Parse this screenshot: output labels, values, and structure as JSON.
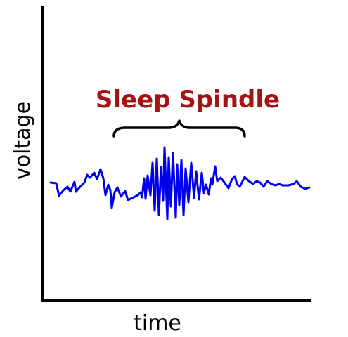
{
  "diagram": {
    "annotation": "Sleep Spindle",
    "xlabel": "time",
    "ylabel": "voltage",
    "colors": {
      "signal": "#0000ee",
      "annotation": "#a31515",
      "axes": "#000000",
      "bracket": "#000000"
    }
  }
}
